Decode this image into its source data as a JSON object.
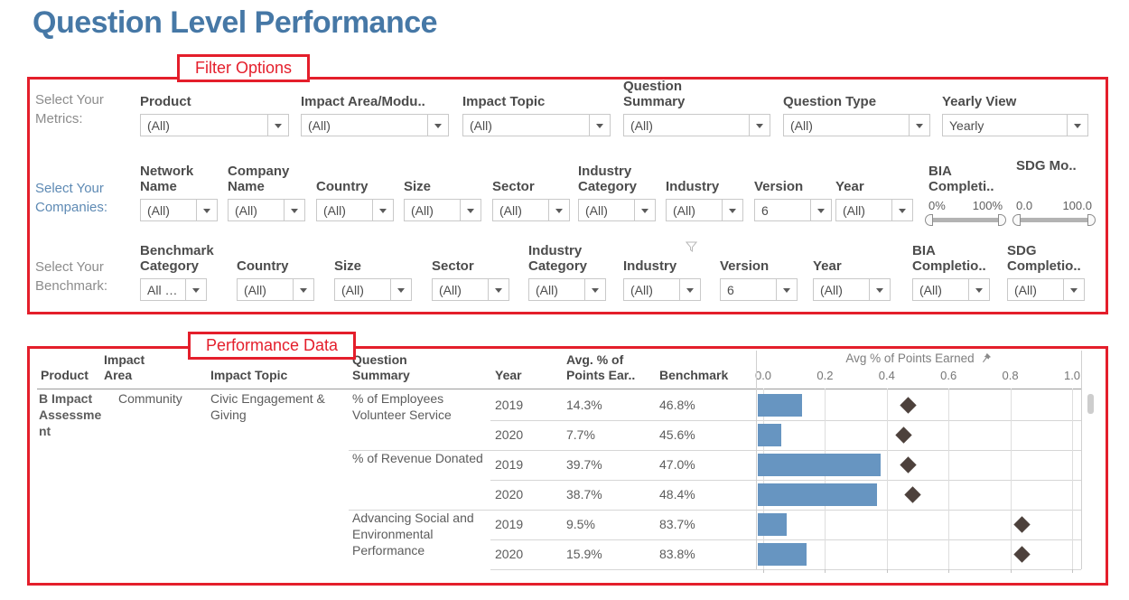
{
  "title": "Question Level Performance",
  "colors": {
    "accent_red": "#e41e2b",
    "title_blue": "#4678a6",
    "companies_label_blue": "#5e8ab4",
    "bar_blue": "#6795c1",
    "benchmark_diamond": "#4d413c"
  },
  "icons": {
    "dropdown_caret": "chevron-down",
    "pin": "pushpin",
    "funnel": "filter-funnel",
    "slider_handles": "range-slider-handles"
  },
  "filters": {
    "section_label": "Filter Options",
    "metrics": {
      "row_label": "Select Your Metrics:",
      "items": [
        {
          "label": "Product",
          "value": "(All)"
        },
        {
          "label": "Impact Area/Modu..",
          "value": "(All)"
        },
        {
          "label": "Impact Topic",
          "value": "(All)"
        },
        {
          "label": "Question Summary",
          "value": "(All)"
        },
        {
          "label": "Question Type",
          "value": "(All)"
        },
        {
          "label": "Yearly View",
          "value": "Yearly"
        }
      ]
    },
    "companies": {
      "row_label": "Select Your Companies:",
      "items": [
        {
          "label": "Network Name",
          "value": "(All)"
        },
        {
          "label": "Company Name",
          "value": "(All)"
        },
        {
          "label": "Country",
          "value": "(All)"
        },
        {
          "label": "Size",
          "value": "(All)"
        },
        {
          "label": "Sector",
          "value": "(All)"
        },
        {
          "label": "Industry Category",
          "value": "(All)"
        },
        {
          "label": "Industry",
          "value": "(All)"
        },
        {
          "label": "Version",
          "value": "6"
        },
        {
          "label": "Year",
          "value": "(All)"
        }
      ],
      "sliders": [
        {
          "label": "BIA Completi..",
          "min": "0%",
          "max": "100%"
        },
        {
          "label": "SDG Mo..",
          "min": "0.0",
          "max": "100.0"
        }
      ]
    },
    "benchmark": {
      "row_label": "Select Your Benchmark:",
      "items": [
        {
          "label": "Benchmark Category",
          "value": "All Co..."
        },
        {
          "label": "Country",
          "value": "(All)"
        },
        {
          "label": "Size",
          "value": "(All)"
        },
        {
          "label": "Sector",
          "value": "(All)"
        },
        {
          "label": "Industry Category",
          "value": "(All)"
        },
        {
          "label": "Industry",
          "value": "(All)"
        },
        {
          "label": "Version",
          "value": "6"
        },
        {
          "label": "Year",
          "value": "(All)"
        },
        {
          "label": "BIA Completio..",
          "value": "(All)"
        },
        {
          "label": "SDG Completio..",
          "value": "(All)"
        }
      ]
    }
  },
  "performance": {
    "section_label": "Performance Data",
    "table": {
      "headers": {
        "product": "Product",
        "impact_area": "Impact Area",
        "impact_topic": "Impact Topic",
        "question_summary": "Question Summary",
        "year": "Year",
        "avg_points": "Avg. % of Points Ear..",
        "benchmark": "Benchmark"
      },
      "group": {
        "product": "B Impact Assessment",
        "impact_area": "Community",
        "impact_topic": "Civic Engagement & Giving"
      },
      "question_groups": [
        {
          "summary": "% of Employees Volunteer Service",
          "rows": [
            {
              "year": "2019",
              "avg": "14.3%",
              "benchmark": "46.8%"
            },
            {
              "year": "2020",
              "avg": "7.7%",
              "benchmark": "45.6%"
            }
          ]
        },
        {
          "summary": "% of Revenue Donated",
          "rows": [
            {
              "year": "2019",
              "avg": "39.7%",
              "benchmark": "47.0%"
            },
            {
              "year": "2020",
              "avg": "38.7%",
              "benchmark": "48.4%"
            }
          ]
        },
        {
          "summary": "Advancing Social and Environmental Performance",
          "rows": [
            {
              "year": "2019",
              "avg": "9.5%",
              "benchmark": "83.7%"
            },
            {
              "year": "2020",
              "avg": "15.9%",
              "benchmark": "83.8%"
            }
          ]
        }
      ]
    }
  },
  "chart_data": {
    "type": "bar",
    "orientation": "horizontal",
    "title": "Avg % of Points Earned",
    "x_tick_labels": [
      "0.0",
      "0.2",
      "0.4",
      "0.6",
      "0.8",
      "1.0"
    ],
    "x_tick_values": [
      0,
      0.2,
      0.4,
      0.6,
      0.8,
      1.0
    ],
    "xlim": [
      0,
      1
    ],
    "grid": true,
    "legend": false,
    "categories": [
      "% of Employees Volunteer Service - 2019",
      "% of Employees Volunteer Service - 2020",
      "% of Revenue Donated - 2019",
      "% of Revenue Donated - 2020",
      "Advancing Social and Environmental Performance - 2019",
      "Advancing Social and Environmental Performance - 2020"
    ],
    "series": [
      {
        "name": "Avg. % of Points Earned",
        "mark": "bar",
        "color": "#6795c1",
        "values": [
          0.143,
          0.077,
          0.397,
          0.387,
          0.095,
          0.159
        ]
      },
      {
        "name": "Benchmark",
        "mark": "diamond",
        "color": "#4d413c",
        "values": [
          0.468,
          0.456,
          0.47,
          0.484,
          0.837,
          0.838
        ]
      }
    ]
  }
}
